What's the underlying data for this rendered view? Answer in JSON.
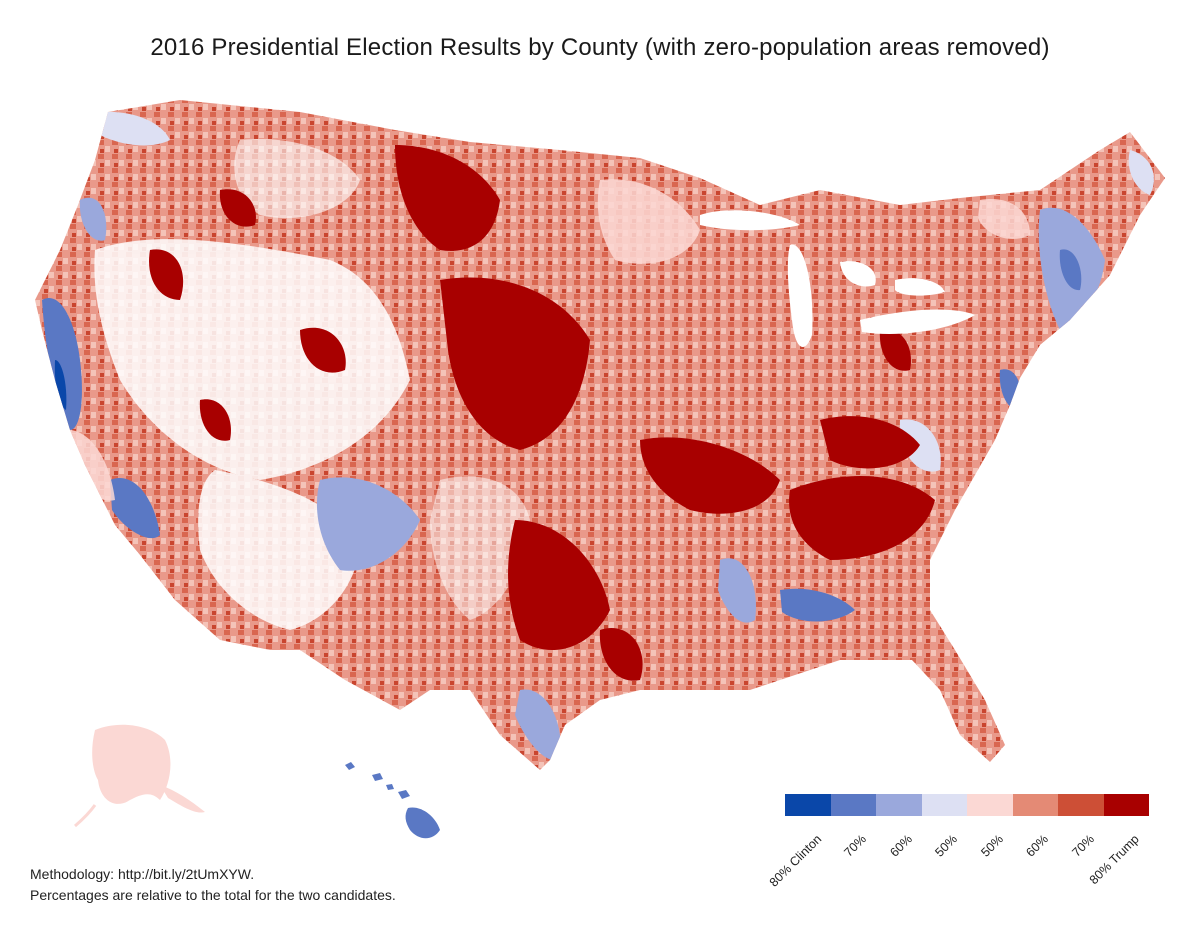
{
  "title": "2016 Presidential Election Results by County (with zero-population areas removed)",
  "legend": {
    "colors": [
      "#0a47a9",
      "#5a78c4",
      "#9aa8dc",
      "#dde0f3",
      "#fbd8d4",
      "#e48a75",
      "#cd4f36",
      "#a80000"
    ],
    "labels": [
      "80% Clinton",
      "70%",
      "60%",
      "50%",
      "50%",
      "60%",
      "70%",
      "80% Trump"
    ]
  },
  "methodology": {
    "line1": "Methodology: http://bit.ly/2tUmXYW.",
    "line2": "Percentages are relative to the total for the two candidates."
  },
  "regions": [
    "Contiguous United States",
    "Alaska",
    "Hawaii"
  ]
}
